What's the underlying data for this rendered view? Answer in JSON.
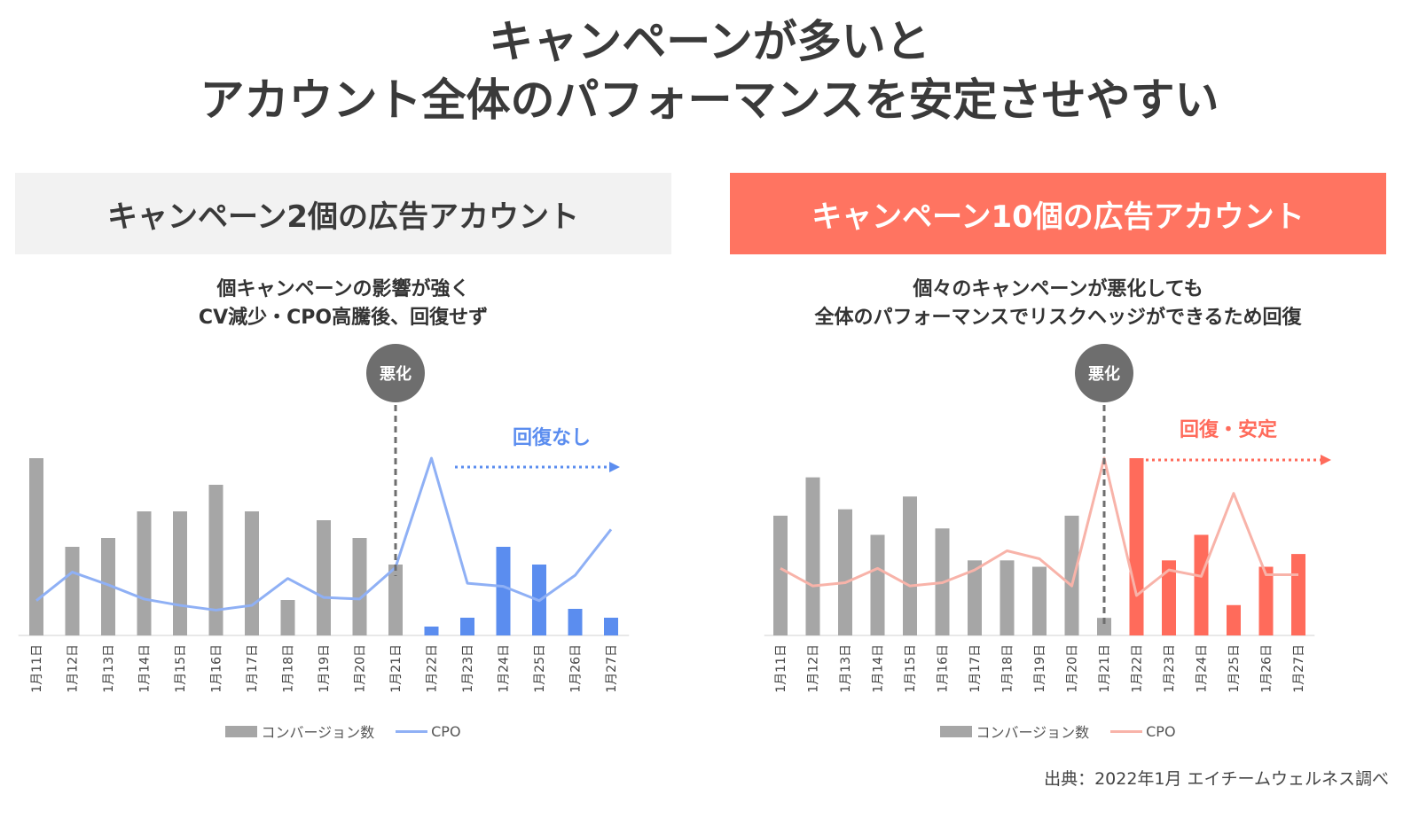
{
  "title": {
    "line1": "キャンペーンが多いと",
    "line2": "アカウント全体のパフォーマンスを安定させやすい"
  },
  "source": "出典：2022年1月 エイチームウェルネス調べ",
  "colors": {
    "gray_bar": "#a6a6a6",
    "blue_accent": "#5b8def",
    "blue_line": "#8fb0f5",
    "red_accent": "#ff6b5b",
    "red_line": "#f8b3a9",
    "marker": "#6e6e6e"
  },
  "panels": [
    {
      "heading": "キャンペーン2個の広告アカウント",
      "subtitle_line1": "個キャンペーンの影響が強く",
      "subtitle_line2": "CV減少・CPO高騰後、回復せず",
      "marker_label": "悪化",
      "annotation": "回復なし",
      "legend_bar": "コンバージョン数",
      "legend_line": "CPO"
    },
    {
      "heading": "キャンペーン10個の広告アカウント",
      "subtitle_line1": "個々のキャンペーンが悪化しても",
      "subtitle_line2": "全体のパフォーマンスでリスクヘッジができるため回復",
      "marker_label": "悪化",
      "annotation": "回復・安定",
      "legend_bar": "コンバージョン数",
      "legend_line": "CPO"
    }
  ],
  "chart_data": [
    {
      "type": "bar+line",
      "categories": [
        "1月11日",
        "1月12日",
        "1月13日",
        "1月14日",
        "1月15日",
        "1月16日",
        "1月17日",
        "1月18日",
        "1月19日",
        "1月20日",
        "1月21日",
        "1月22日",
        "1月23日",
        "1月24日",
        "1月25日",
        "1月26日",
        "1月27日"
      ],
      "series": [
        {
          "name": "コンバージョン数",
          "type": "bar",
          "values": [
            100,
            50,
            55,
            70,
            70,
            85,
            70,
            20,
            65,
            55,
            40,
            5,
            10,
            50,
            40,
            15,
            10
          ]
        },
        {
          "name": "CPO",
          "type": "line",
          "values": [
            22,
            40,
            32,
            23,
            19,
            16,
            19,
            36,
            24,
            23,
            43,
            112,
            33,
            31,
            22,
            38,
            67
          ]
        }
      ],
      "highlight_from_index": 11,
      "event_index": 10,
      "y_bar_max": 100,
      "y_line_max": 112,
      "grid": false
    },
    {
      "type": "bar+line",
      "categories": [
        "1月11日",
        "1月12日",
        "1月13日",
        "1月14日",
        "1月15日",
        "1月16日",
        "1月17日",
        "1月18日",
        "1月19日",
        "1月20日",
        "1月21日",
        "1月22日",
        "1月23日",
        "1月24日",
        "1月25日",
        "1月26日",
        "1月27日"
      ],
      "series": [
        {
          "name": "コンバージョン数",
          "type": "bar",
          "values": [
            75,
            99,
            79,
            63,
            87,
            67,
            47,
            47,
            43,
            75,
            11,
            111,
            47,
            63,
            19,
            43,
            51
          ]
        },
        {
          "name": "CPO",
          "type": "line",
          "values": [
            42,
            31,
            33,
            42,
            31,
            33,
            41,
            53,
            48,
            31,
            111,
            25,
            41,
            37,
            89,
            38,
            38
          ]
        }
      ],
      "highlight_from_index": 11,
      "event_index": 10,
      "y_bar_max": 111,
      "y_line_max": 111,
      "grid": false
    }
  ]
}
